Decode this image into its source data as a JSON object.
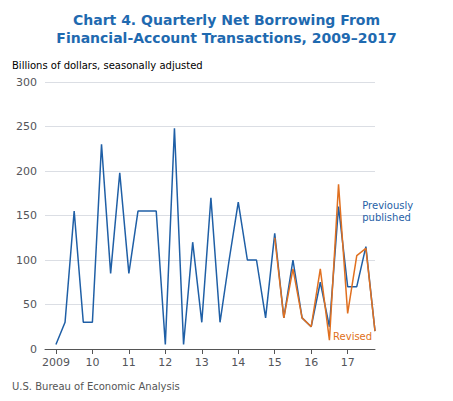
{
  "chart_data": {
    "type": "line",
    "title": "Chart 4. Quarterly Net Borrowing From\nFinancial-Account Transactions, 2009–2017",
    "title_color": "#1f6ab0",
    "subtitle": "Billions of dollars, seasonally adjusted",
    "footnote": "U.S. Bureau of Economic Analysis",
    "series": [
      {
        "color": "#1f5fa6",
        "x": [
          2009,
          2009.25,
          2009.5,
          2009.75,
          2010,
          2010.25,
          2010.5,
          2010.75,
          2011,
          2011.25,
          2011.5,
          2011.75,
          2012,
          2012.25,
          2012.5,
          2012.75,
          2013,
          2013.25,
          2013.5,
          2013.75,
          2014,
          2014.25,
          2014.5,
          2014.75,
          2015,
          2015.25,
          2015.5,
          2015.75,
          2016,
          2016.25,
          2016.5,
          2016.75,
          2017,
          2017.25,
          2017.5,
          2017.75
        ],
        "values": [
          5,
          30,
          155,
          30,
          30,
          230,
          85,
          198,
          85,
          155,
          155,
          155,
          5,
          248,
          5,
          120,
          30,
          170,
          30,
          100,
          165,
          100,
          100,
          35,
          130,
          35,
          100,
          35,
          25,
          75,
          25,
          160,
          70,
          70,
          115,
          20
        ]
      },
      {
        "color": "#e07020",
        "x": [
          2015,
          2015.25,
          2015.5,
          2015.75,
          2016,
          2016.25,
          2016.5,
          2016.75,
          2017,
          2017.25,
          2017.5,
          2017.75
        ],
        "values": [
          125,
          35,
          90,
          35,
          25,
          90,
          10,
          185,
          40,
          105,
          113,
          20
        ]
      }
    ],
    "annotations": [
      {
        "text": "Previously\npublished",
        "x": 2017.4,
        "y": 155,
        "color": "#1f5fa6"
      },
      {
        "text": "Revised",
        "x": 2016.6,
        "y": 14,
        "color": "#e07020"
      }
    ],
    "xlim": [
      2008.7,
      2017.75
    ],
    "xticks": [
      2009,
      {
        "value": 2010,
        "label": "10"
      },
      {
        "value": 2011,
        "label": "11"
      },
      {
        "value": 2012,
        "label": "12"
      },
      {
        "value": 2013,
        "label": "13"
      },
      {
        "value": 2014,
        "label": "14"
      },
      {
        "value": 2015,
        "label": "15"
      },
      {
        "value": 2016,
        "label": "16"
      },
      {
        "value": 2017,
        "label": "17"
      }
    ],
    "ylim": [
      0,
      300
    ],
    "yticks": [
      0,
      50,
      100,
      150,
      200,
      250,
      300
    ],
    "grid": true
  }
}
